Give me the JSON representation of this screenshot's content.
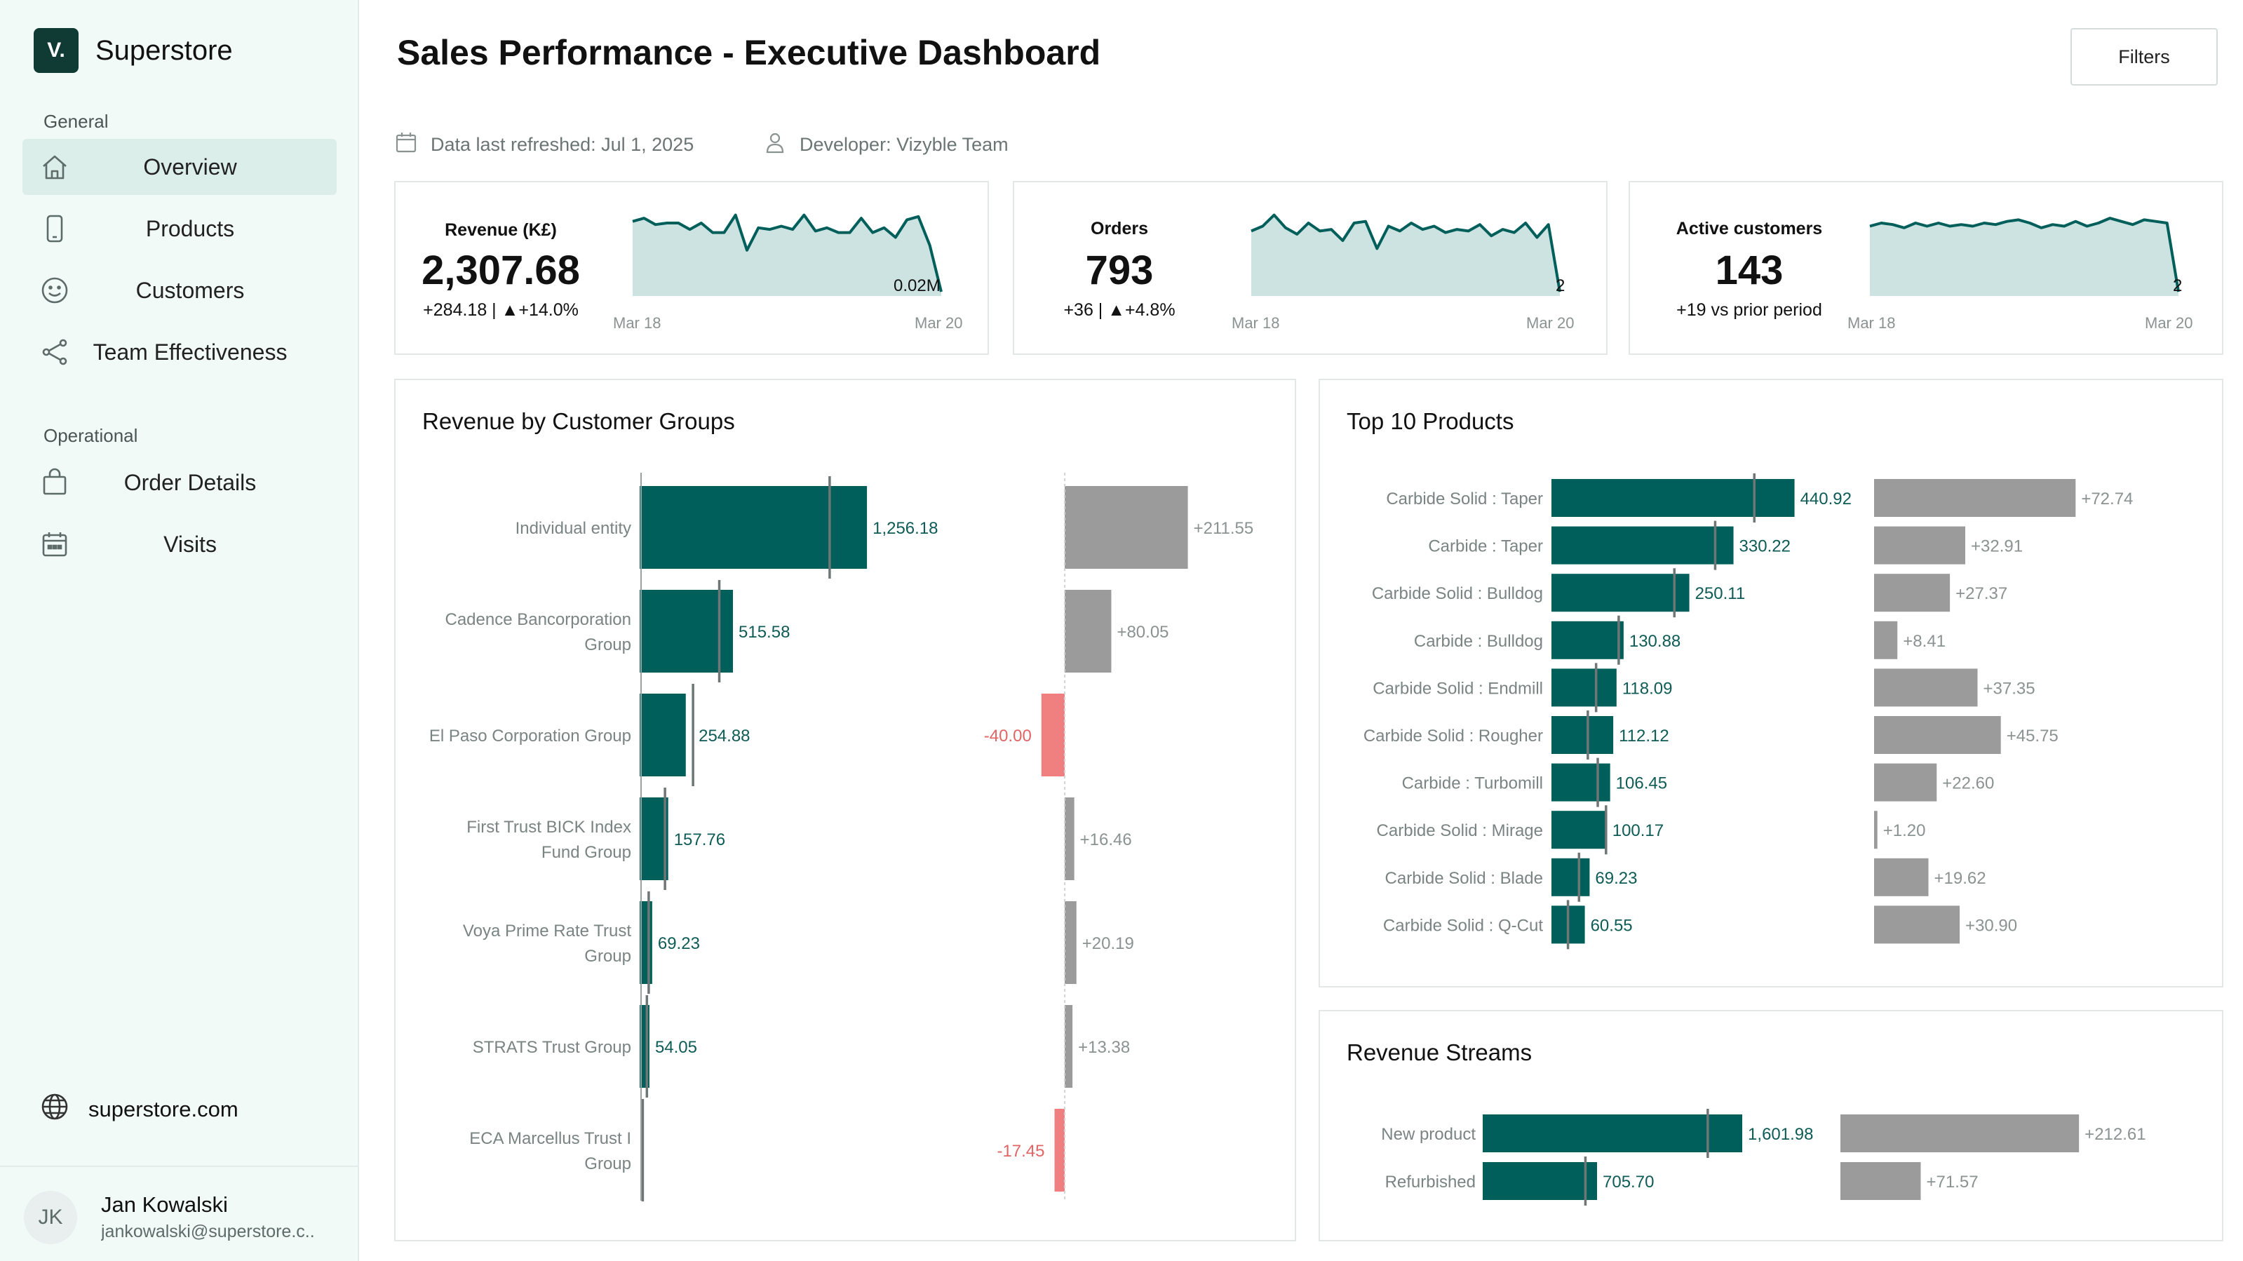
{
  "sidebar": {
    "brand_logo": "V.",
    "brand_name": "Superstore",
    "general_label": "General",
    "operational_label": "Operational",
    "items": [
      {
        "label": "Overview",
        "icon": "home-icon"
      },
      {
        "label": "Products",
        "icon": "phone-icon"
      },
      {
        "label": "Customers",
        "icon": "smiley-icon"
      },
      {
        "label": "Team Effectiveness",
        "icon": "share-icon"
      },
      {
        "label": "Order Details",
        "icon": "bag-icon"
      },
      {
        "label": "Visits",
        "icon": "calendar-icon"
      }
    ],
    "site": "superstore.com",
    "user": {
      "initials": "JK",
      "name": "Jan Kowalski",
      "email": "jankowalski@superstore.c.."
    }
  },
  "header": {
    "title": "Sales Performance - Executive Dashboard",
    "filters_label": "Filters",
    "refreshed": "Data last refreshed: Jul 1, 2025",
    "developer": "Developer: Vizyble Team"
  },
  "colors": {
    "accent": "#005f5a",
    "area": "#cde3e1",
    "gray_bar": "#9b9b9b",
    "negative": "#f08080",
    "label_teal": "#0f5c57"
  },
  "kpis": [
    {
      "title": "Revenue (K£)",
      "value": "2,307.68",
      "sub": "+284.18 | ▲+14.0%",
      "end_label": "0.02M",
      "start_date": "Mar 18",
      "end_date": "Mar 20",
      "spark": [
        0.88,
        0.92,
        0.84,
        0.86,
        0.86,
        0.78,
        0.86,
        0.74,
        0.74,
        0.96,
        0.52,
        0.8,
        0.78,
        0.82,
        0.78,
        0.96,
        0.76,
        0.8,
        0.74,
        0.74,
        0.92,
        0.74,
        0.8,
        0.68,
        0.9,
        0.94,
        0.58,
        0.0
      ]
    },
    {
      "title": "Orders",
      "value": "793",
      "sub": "+36 | ▲+4.8%",
      "end_label": "2",
      "start_date": "Mar 18",
      "end_date": "Mar 20",
      "spark": [
        0.76,
        0.82,
        0.96,
        0.8,
        0.72,
        0.86,
        0.76,
        0.78,
        0.64,
        0.86,
        0.88,
        0.54,
        0.82,
        0.76,
        0.86,
        0.78,
        0.82,
        0.74,
        0.78,
        0.76,
        0.84,
        0.7,
        0.78,
        0.74,
        0.86,
        0.68,
        0.84,
        0.0
      ]
    },
    {
      "title": "Active customers",
      "value": "143",
      "sub": "+19 vs prior period",
      "end_label": "2",
      "start_date": "Mar 18",
      "end_date": "Mar 20",
      "spark": [
        0.82,
        0.86,
        0.84,
        0.8,
        0.86,
        0.82,
        0.86,
        0.82,
        0.84,
        0.82,
        0.86,
        0.84,
        0.88,
        0.9,
        0.86,
        0.8,
        0.84,
        0.82,
        0.88,
        0.82,
        0.86,
        0.92,
        0.88,
        0.84,
        0.9,
        0.88,
        0.86,
        0.0
      ]
    }
  ],
  "customer_groups": {
    "title": "Revenue by Customer Groups",
    "rows": [
      {
        "label": [
          "Individual entity"
        ],
        "value": 1256.18,
        "value_label": "1,256.18",
        "prior": 1050,
        "delta": 211.55,
        "delta_label": "+211.55"
      },
      {
        "label": [
          "Cadence Bancorporation",
          "Group"
        ],
        "value": 515.58,
        "value_label": "515.58",
        "prior": 440,
        "delta": 80.05,
        "delta_label": "+80.05"
      },
      {
        "label": [
          "El Paso Corporation Group"
        ],
        "value": 254.88,
        "value_label": "254.88",
        "prior": 295,
        "delta": -40.0,
        "delta_label": "-40.00"
      },
      {
        "label": [
          "First Trust BICK Index",
          "Fund Group"
        ],
        "value": 157.76,
        "value_label": "157.76",
        "prior": 140,
        "delta": 16.46,
        "delta_label": "+16.46"
      },
      {
        "label": [
          "Voya Prime Rate Trust",
          "Group"
        ],
        "value": 69.23,
        "value_label": "69.23",
        "prior": 50,
        "delta": 20.19,
        "delta_label": "+20.19"
      },
      {
        "label": [
          "STRATS Trust Group"
        ],
        "value": 54.05,
        "value_label": "54.05",
        "prior": 40,
        "delta": 13.38,
        "delta_label": "+13.38"
      },
      {
        "label": [
          "ECA Marcellus Trust I",
          "Group"
        ],
        "value": 0,
        "value_label": "",
        "prior": 17,
        "delta": -17.45,
        "delta_label": "-17.45"
      }
    ]
  },
  "top_products": {
    "title": "Top 10 Products",
    "rows": [
      {
        "label": "Carbide Solid : Taper",
        "value": 440.92,
        "value_label": "440.92",
        "prior": 368,
        "delta": 72.74,
        "delta_label": "+72.74"
      },
      {
        "label": "Carbide : Taper",
        "value": 330.22,
        "value_label": "330.22",
        "prior": 297,
        "delta": 32.91,
        "delta_label": "+32.91"
      },
      {
        "label": "Carbide Solid : Bulldog",
        "value": 250.11,
        "value_label": "250.11",
        "prior": 223,
        "delta": 27.37,
        "delta_label": "+27.37"
      },
      {
        "label": "Carbide : Bulldog",
        "value": 130.88,
        "value_label": "130.88",
        "prior": 122,
        "delta": 8.41,
        "delta_label": "+8.41"
      },
      {
        "label": "Carbide Solid : Endmill",
        "value": 118.09,
        "value_label": "118.09",
        "prior": 81,
        "delta": 37.35,
        "delta_label": "+37.35"
      },
      {
        "label": "Carbide Solid : Rougher",
        "value": 112.12,
        "value_label": "112.12",
        "prior": 66,
        "delta": 45.75,
        "delta_label": "+45.75"
      },
      {
        "label": "Carbide : Turbomill",
        "value": 106.45,
        "value_label": "106.45",
        "prior": 84,
        "delta": 22.6,
        "delta_label": "+22.60"
      },
      {
        "label": "Carbide Solid : Mirage",
        "value": 100.17,
        "value_label": "100.17",
        "prior": 99,
        "delta": 1.2,
        "delta_label": "+1.20"
      },
      {
        "label": "Carbide Solid : Blade",
        "value": 69.23,
        "value_label": "69.23",
        "prior": 50,
        "delta": 19.62,
        "delta_label": "+19.62"
      },
      {
        "label": "Carbide Solid : Q-Cut",
        "value": 60.55,
        "value_label": "60.55",
        "prior": 30,
        "delta": 30.9,
        "delta_label": "+30.90"
      }
    ]
  },
  "revenue_streams": {
    "title": "Revenue Streams",
    "rows": [
      {
        "label": "New product",
        "value": 1601.98,
        "value_label": "1,601.98",
        "prior": 1389,
        "delta": 212.61,
        "delta_label": "+212.61"
      },
      {
        "label": "Refurbished",
        "value": 705.7,
        "value_label": "705.70",
        "prior": 634,
        "delta": 71.57,
        "delta_label": "+71.57"
      }
    ]
  }
}
